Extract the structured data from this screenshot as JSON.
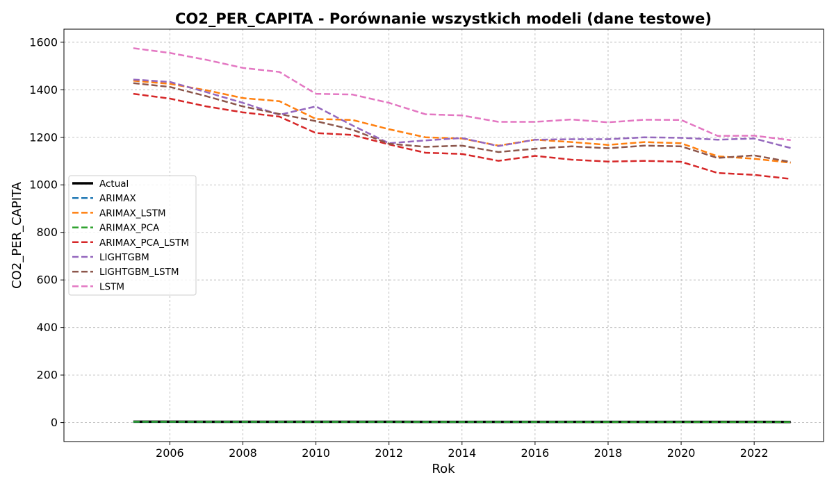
{
  "chart_data": {
    "type": "line",
    "title": "CO2_PER_CAPITA - Porównanie wszystkich modeli (dane testowe)",
    "xlabel": "Rok",
    "ylabel": "CO2_PER_CAPITA",
    "xlim": [
      2003.1,
      2023.9
    ],
    "ylim": [
      -80,
      1655
    ],
    "xticks": [
      2006,
      2008,
      2010,
      2012,
      2014,
      2016,
      2018,
      2020,
      2022
    ],
    "yticks": [
      0,
      200,
      400,
      600,
      800,
      1000,
      1200,
      1400,
      1600
    ],
    "grid": true,
    "legend_position": "center-left",
    "x": [
      2005,
      2006,
      2007,
      2008,
      2009,
      2010,
      2011,
      2012,
      2013,
      2014,
      2015,
      2016,
      2017,
      2018,
      2019,
      2020,
      2021,
      2022,
      2023
    ],
    "series": [
      {
        "name": "Actual",
        "color": "#000000",
        "style": "solid",
        "width": 3.5,
        "values": [
          3.5,
          3.5,
          3.4,
          3.4,
          3.2,
          3.2,
          3.2,
          3.1,
          3.0,
          3.0,
          3.0,
          3.0,
          2.9,
          2.9,
          2.9,
          2.8,
          2.8,
          2.8,
          2.7
        ]
      },
      {
        "name": "ARIMAX",
        "color": "#1f77b4",
        "style": "dashed",
        "width": 2.5,
        "values": [
          3.4,
          3.4,
          3.3,
          3.3,
          3.2,
          3.1,
          3.1,
          3.0,
          3.0,
          2.9,
          2.9,
          2.9,
          2.8,
          2.8,
          2.8,
          2.7,
          2.7,
          2.7,
          2.6
        ]
      },
      {
        "name": "ARIMAX_LSTM",
        "color": "#ff7f0e",
        "style": "dashed",
        "width": 2.5,
        "values": [
          1438,
          1425,
          1398,
          1365,
          1352,
          1277,
          1273,
          1234,
          1200,
          1195,
          1165,
          1190,
          1180,
          1168,
          1180,
          1175,
          1120,
          1110,
          1093
        ]
      },
      {
        "name": "ARIMAX_PCA",
        "color": "#2ca02c",
        "style": "dashed",
        "width": 2.5,
        "values": [
          3.3,
          3.3,
          3.2,
          3.2,
          3.1,
          3.0,
          3.0,
          2.9,
          2.9,
          2.8,
          2.8,
          2.8,
          2.7,
          2.7,
          2.7,
          2.6,
          2.6,
          2.6,
          2.5
        ]
      },
      {
        "name": "ARIMAX_PCA_LSTM",
        "color": "#d62728",
        "style": "dashed",
        "width": 2.5,
        "values": [
          1383,
          1363,
          1330,
          1305,
          1287,
          1218,
          1210,
          1170,
          1135,
          1130,
          1101,
          1122,
          1106,
          1098,
          1101,
          1097,
          1050,
          1042,
          1025
        ]
      },
      {
        "name": "LIGHTGBM",
        "color": "#9467bd",
        "style": "dashed",
        "width": 2.5,
        "values": [
          1443,
          1433,
          1390,
          1345,
          1295,
          1330,
          1250,
          1175,
          1187,
          1197,
          1163,
          1190,
          1192,
          1192,
          1200,
          1198,
          1190,
          1195,
          1155
        ]
      },
      {
        "name": "LIGHTGBM_LSTM",
        "color": "#8c564b",
        "style": "dashed",
        "width": 2.5,
        "values": [
          1428,
          1412,
          1373,
          1330,
          1298,
          1268,
          1232,
          1173,
          1160,
          1165,
          1138,
          1152,
          1162,
          1154,
          1165,
          1162,
          1113,
          1124,
          1096
        ]
      },
      {
        "name": "LSTM",
        "color": "#e377c2",
        "style": "dashed",
        "width": 2.5,
        "values": [
          1575,
          1555,
          1526,
          1492,
          1475,
          1383,
          1380,
          1345,
          1297,
          1292,
          1265,
          1265,
          1275,
          1263,
          1274,
          1273,
          1206,
          1207,
          1188
        ]
      }
    ]
  }
}
